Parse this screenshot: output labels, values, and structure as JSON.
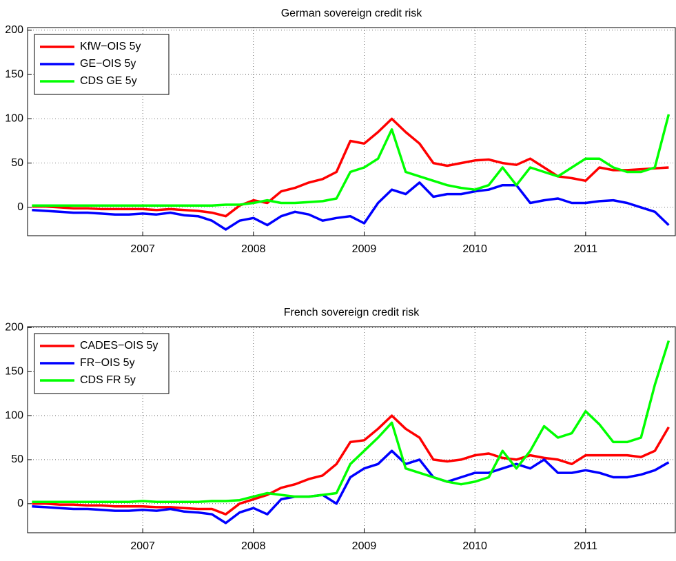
{
  "chart_data": [
    {
      "type": "line",
      "title": "German sovereign credit risk",
      "x": [
        2006.0,
        2006.125,
        2006.25,
        2006.375,
        2006.5,
        2006.625,
        2006.75,
        2006.875,
        2007.0,
        2007.125,
        2007.25,
        2007.375,
        2007.5,
        2007.625,
        2007.75,
        2007.875,
        2008.0,
        2008.125,
        2008.25,
        2008.375,
        2008.5,
        2008.625,
        2008.75,
        2008.875,
        2009.0,
        2009.125,
        2009.25,
        2009.375,
        2009.5,
        2009.625,
        2009.75,
        2009.875,
        2010.0,
        2010.125,
        2010.25,
        2010.375,
        2010.5,
        2010.625,
        2010.75,
        2010.875,
        2011.0,
        2011.125,
        2011.25,
        2011.375,
        2011.5,
        2011.625,
        2011.75
      ],
      "xlim": [
        2005.96,
        2011.81
      ],
      "xticks": [
        2007,
        2008,
        2009,
        2010,
        2011
      ],
      "ylim": [
        -32,
        203
      ],
      "yticks": [
        0,
        50,
        100,
        150,
        200
      ],
      "grid": true,
      "legend": "upper left",
      "series": [
        {
          "name": "KfW−OIS 5y",
          "color": "#ff0000",
          "values": [
            1,
            1,
            0,
            -1,
            -1,
            -2,
            -2,
            -2,
            -2,
            -3,
            -2,
            -3,
            -4,
            -6,
            -10,
            2,
            8,
            5,
            18,
            22,
            28,
            32,
            40,
            75,
            72,
            85,
            100,
            85,
            72,
            50,
            47,
            50,
            53,
            54,
            50,
            48,
            55,
            45,
            35,
            33,
            30,
            45,
            42,
            42,
            43,
            44,
            45
          ]
        },
        {
          "name": "GE−OIS 5y",
          "color": "#0000ff",
          "values": [
            -3,
            -4,
            -5,
            -6,
            -6,
            -7,
            -8,
            -8,
            -7,
            -8,
            -6,
            -9,
            -10,
            -15,
            -25,
            -15,
            -12,
            -20,
            -10,
            -5,
            -8,
            -15,
            -12,
            -10,
            -18,
            5,
            20,
            15,
            28,
            12,
            15,
            15,
            18,
            20,
            25,
            25,
            5,
            8,
            10,
            5,
            5,
            7,
            8,
            5,
            0,
            -5,
            -20
          ]
        },
        {
          "name": "CDS GE 5y",
          "color": "#00ff00",
          "values": [
            2,
            2,
            2,
            2,
            2,
            2,
            2,
            2,
            2,
            2,
            2,
            2,
            2,
            2,
            3,
            3,
            5,
            8,
            5,
            5,
            6,
            7,
            10,
            40,
            45,
            55,
            88,
            40,
            35,
            30,
            25,
            22,
            20,
            25,
            45,
            25,
            45,
            40,
            35,
            45,
            55,
            55,
            45,
            40,
            40,
            45,
            105
          ]
        }
      ]
    },
    {
      "type": "line",
      "title": "French sovereign credit risk",
      "x": [
        2006.0,
        2006.125,
        2006.25,
        2006.375,
        2006.5,
        2006.625,
        2006.75,
        2006.875,
        2007.0,
        2007.125,
        2007.25,
        2007.375,
        2007.5,
        2007.625,
        2007.75,
        2007.875,
        2008.0,
        2008.125,
        2008.25,
        2008.375,
        2008.5,
        2008.625,
        2008.75,
        2008.875,
        2009.0,
        2009.125,
        2009.25,
        2009.375,
        2009.5,
        2009.625,
        2009.75,
        2009.875,
        2010.0,
        2010.125,
        2010.25,
        2010.375,
        2010.5,
        2010.625,
        2010.75,
        2010.875,
        2011.0,
        2011.125,
        2011.25,
        2011.375,
        2011.5,
        2011.625,
        2011.75
      ],
      "xlim": [
        2005.96,
        2011.81
      ],
      "xticks": [
        2007,
        2008,
        2009,
        2010,
        2011
      ],
      "ylim": [
        -33,
        201
      ],
      "yticks": [
        0,
        50,
        100,
        150,
        200
      ],
      "grid": true,
      "legend": "upper left",
      "series": [
        {
          "name": "CADES−OIS 5y",
          "color": "#ff0000",
          "values": [
            0,
            0,
            -1,
            -1,
            -2,
            -2,
            -3,
            -3,
            -3,
            -4,
            -4,
            -5,
            -6,
            -6,
            -12,
            0,
            5,
            10,
            18,
            22,
            28,
            32,
            45,
            70,
            72,
            85,
            100,
            85,
            75,
            50,
            48,
            50,
            55,
            57,
            52,
            50,
            55,
            52,
            50,
            45,
            55,
            55,
            55,
            55,
            53,
            60,
            87
          ]
        },
        {
          "name": "FR−OIS 5y",
          "color": "#0000ff",
          "values": [
            -3,
            -4,
            -5,
            -6,
            -6,
            -7,
            -8,
            -8,
            -7,
            -8,
            -6,
            -9,
            -10,
            -12,
            -22,
            -10,
            -5,
            -12,
            5,
            8,
            8,
            10,
            0,
            30,
            40,
            45,
            60,
            45,
            50,
            30,
            25,
            30,
            35,
            35,
            40,
            45,
            40,
            50,
            35,
            35,
            38,
            35,
            30,
            30,
            33,
            38,
            47
          ]
        },
        {
          "name": "CDS FR 5y",
          "color": "#00ff00",
          "values": [
            2,
            2,
            2,
            2,
            2,
            2,
            2,
            2,
            3,
            2,
            2,
            2,
            2,
            3,
            3,
            4,
            8,
            12,
            10,
            8,
            8,
            10,
            12,
            45,
            60,
            75,
            92,
            40,
            35,
            30,
            25,
            22,
            25,
            30,
            60,
            40,
            60,
            88,
            75,
            80,
            105,
            90,
            70,
            70,
            75,
            135,
            185
          ]
        }
      ]
    }
  ]
}
